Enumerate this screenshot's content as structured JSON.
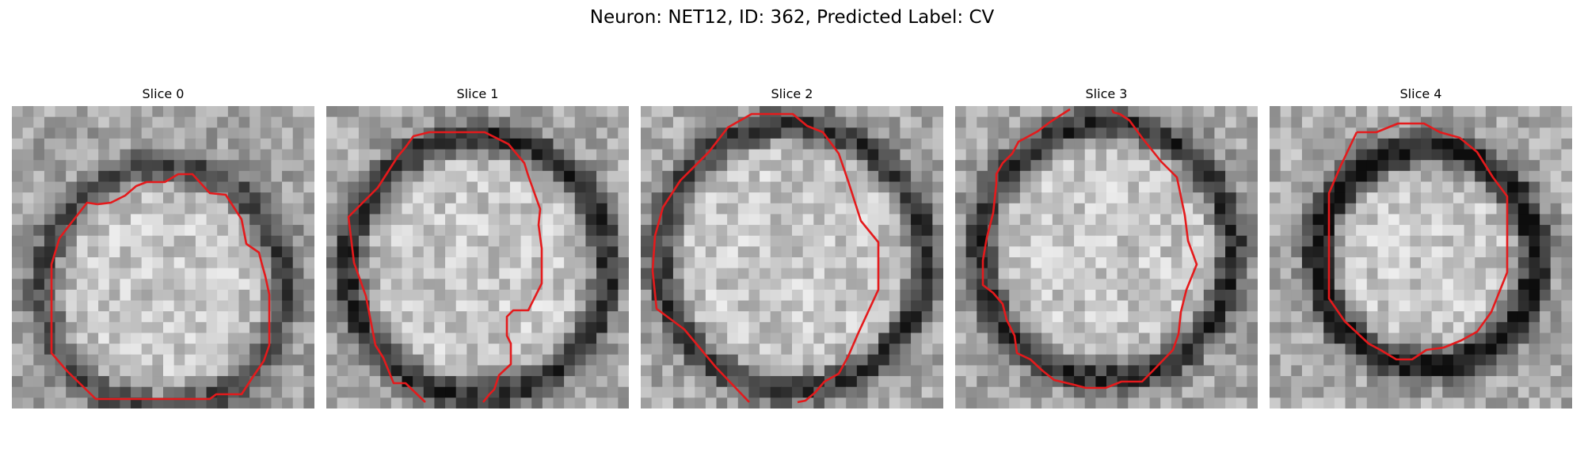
{
  "figure": {
    "title": "Neuron: NET12, ID: 362, Predicted Label: CV"
  },
  "panels": [
    {
      "title": "Slice 0"
    },
    {
      "title": "Slice 1"
    },
    {
      "title": "Slice 2"
    },
    {
      "title": "Slice 3"
    },
    {
      "title": "Slice 4"
    }
  ],
  "colors": {
    "contour": "#e41a1c",
    "background": "#ffffff"
  }
}
